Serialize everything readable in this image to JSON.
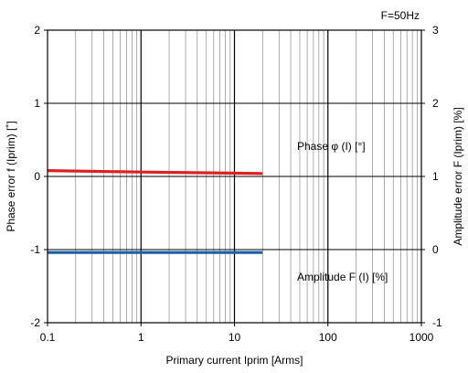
{
  "chart_data": {
    "type": "line",
    "annotation_top": "F=50Hz",
    "xlabel": "Primary current Iprim [Arms]",
    "ylabel_left": "Phase error f (Iprim) [˚]",
    "ylabel_right": "Amplitude error F (Iprim) [%]",
    "xscale": "log",
    "xlim": [
      0.1,
      1000
    ],
    "ylim_left": [
      -2,
      2
    ],
    "ylim_right": [
      -1,
      3
    ],
    "x_ticks": [
      "0.1",
      "1",
      "10",
      "100",
      "1000"
    ],
    "y_ticks_left": [
      "-2",
      "-1",
      "0",
      "1",
      "2"
    ],
    "y_ticks_right": [
      "-1",
      "0",
      "1",
      "2",
      "3"
    ],
    "grid": true,
    "series": [
      {
        "name": "Phase φ (I) [°]",
        "axis": "left",
        "color": "#e02020",
        "x": [
          0.1,
          1,
          20
        ],
        "y": [
          0.08,
          0.06,
          0.04
        ]
      },
      {
        "name": "Amplitude F (I) [%]",
        "axis": "right",
        "color": "#1a5fa8",
        "x": [
          0.1,
          1,
          20
        ],
        "y": [
          -0.04,
          -0.04,
          -0.04
        ]
      }
    ]
  }
}
